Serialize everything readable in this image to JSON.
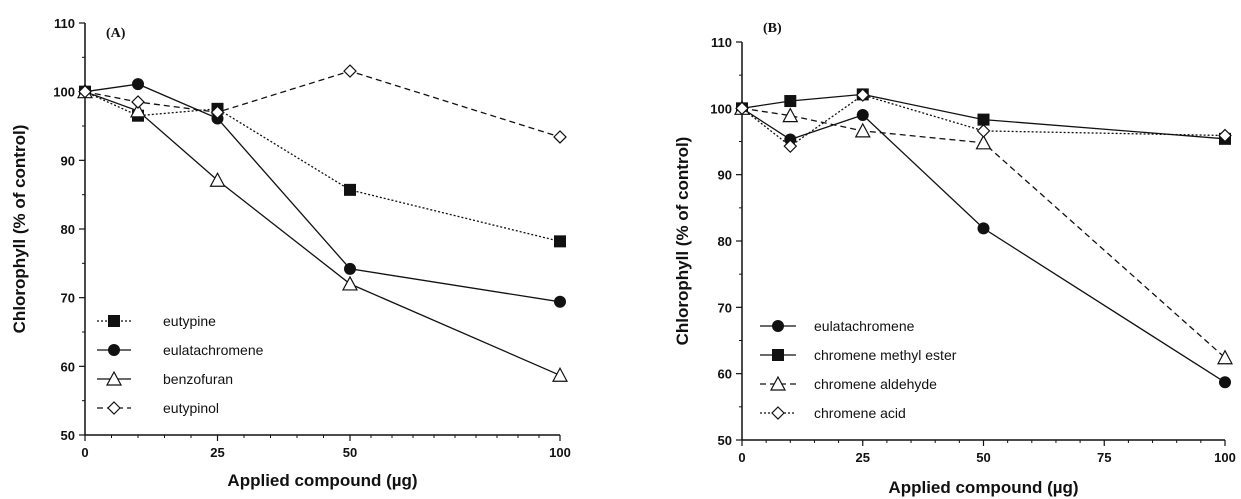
{
  "chart_data": [
    {
      "type": "line",
      "panel_label": "(A)",
      "xlabel": "Applied compound (µg)",
      "ylabel": "Chlorophyll (% of control)",
      "xlim": [
        0,
        100
      ],
      "ylim": [
        50,
        110
      ],
      "x_ticks": [
        0,
        25,
        50,
        100
      ],
      "x_tick_labels": [
        "0",
        "25",
        "50",
        "100"
      ],
      "y_ticks": [
        50,
        60,
        70,
        80,
        90,
        100,
        110
      ],
      "y_tick_labels": [
        "50",
        "60",
        "70",
        "80",
        "90",
        "100",
        "110"
      ],
      "x_scale": "piecewise: 0-50 linear, 50-100 compressed",
      "legend_position": "lower-left",
      "series": [
        {
          "name": "eutypine",
          "marker": "filled-square",
          "line": "dotted",
          "x": [
            0,
            10,
            25,
            50,
            100
          ],
          "y": [
            100,
            96.5,
            97.5,
            85.7,
            78.2
          ]
        },
        {
          "name": "eulatachromene",
          "marker": "filled-circle",
          "line": "solid",
          "x": [
            0,
            10,
            25,
            50,
            100
          ],
          "y": [
            100,
            101.1,
            96.1,
            74.2,
            69.4
          ]
        },
        {
          "name": "benzofuran",
          "marker": "open-triangle",
          "line": "solid",
          "x": [
            0,
            10,
            25,
            50,
            100
          ],
          "y": [
            100,
            97.2,
            87.1,
            72.0,
            58.7
          ]
        },
        {
          "name": "eutypinol",
          "marker": "open-diamond",
          "line": "dashed",
          "x": [
            0,
            10,
            25,
            50,
            100
          ],
          "y": [
            100,
            98.5,
            97,
            103,
            93.4
          ]
        }
      ]
    },
    {
      "type": "line",
      "panel_label": "(B)",
      "xlabel": "Applied compound (µg)",
      "ylabel": "Chlorophyll (% of control)",
      "xlim": [
        0,
        100
      ],
      "ylim": [
        50,
        110
      ],
      "x_ticks": [
        0,
        25,
        50,
        75,
        100
      ],
      "x_tick_labels": [
        "0",
        "25",
        "50",
        "75",
        "100"
      ],
      "y_ticks": [
        50,
        60,
        70,
        80,
        90,
        100,
        110
      ],
      "y_tick_labels": [
        "50",
        "60",
        "70",
        "80",
        "90",
        "100",
        "110"
      ],
      "x_scale": "linear",
      "legend_position": "lower-left",
      "series": [
        {
          "name": "eulatachromene",
          "marker": "filled-circle",
          "line": "solid",
          "x": [
            0,
            10,
            25,
            50,
            100
          ],
          "y": [
            100,
            95.3,
            99.0,
            81.9,
            58.7
          ]
        },
        {
          "name": "chromene methyl ester",
          "marker": "filled-square",
          "line": "solid",
          "x": [
            0,
            10,
            25,
            50,
            100
          ],
          "y": [
            100,
            101.1,
            102.1,
            98.3,
            95.4
          ]
        },
        {
          "name": "chromene aldehyde",
          "marker": "open-triangle",
          "line": "dashed",
          "x": [
            0,
            10,
            25,
            50,
            100
          ],
          "y": [
            100,
            98.9,
            96.6,
            94.8,
            62.4
          ]
        },
        {
          "name": "chromene acid",
          "marker": "open-diamond",
          "line": "dotted",
          "x": [
            0,
            10,
            25,
            50,
            100
          ],
          "y": [
            100,
            94.3,
            102.0,
            96.6,
            95.9
          ]
        }
      ]
    }
  ]
}
